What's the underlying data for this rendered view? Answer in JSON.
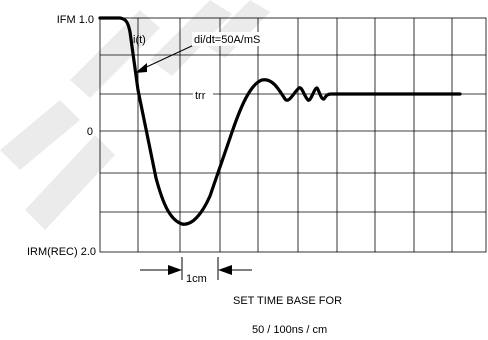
{
  "labels": {
    "ifm": "IFM 1.0",
    "zero": "0",
    "irm": "IRM(REC) 2.0",
    "it": "i(t)",
    "didt": "di/dt=50A/mS",
    "trr": "trr",
    "cm": "1cm",
    "caption_line1": "SET TIME BASE FOR",
    "caption_line2": "50 / 100ns / cm"
  },
  "watermark": "REJECT"
}
